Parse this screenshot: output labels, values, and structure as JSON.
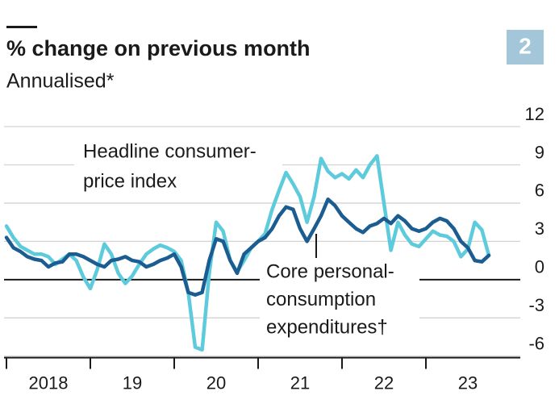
{
  "chart_data": {
    "type": "line",
    "title": "% change on previous month",
    "subtitle": "Annualised*",
    "badge": "2",
    "x": [
      2018,
      2018.083,
      2018.167,
      2018.25,
      2018.333,
      2018.417,
      2018.5,
      2018.583,
      2018.667,
      2018.75,
      2018.833,
      2018.917,
      2019,
      2019.083,
      2019.167,
      2019.25,
      2019.333,
      2019.417,
      2019.5,
      2019.583,
      2019.667,
      2019.75,
      2019.833,
      2019.917,
      2020,
      2020.083,
      2020.167,
      2020.25,
      2020.333,
      2020.417,
      2020.5,
      2020.583,
      2020.667,
      2020.75,
      2020.833,
      2020.917,
      2021,
      2021.083,
      2021.167,
      2021.25,
      2021.333,
      2021.417,
      2021.5,
      2021.583,
      2021.667,
      2021.75,
      2021.833,
      2021.917,
      2022,
      2022.083,
      2022.167,
      2022.25,
      2022.333,
      2022.417,
      2022.5,
      2022.583,
      2022.667,
      2022.75,
      2022.833,
      2022.917,
      2023,
      2023.083,
      2023.167,
      2023.25,
      2023.333,
      2023.417,
      2023.5,
      2023.583,
      2023.667,
      2023.75
    ],
    "series": [
      {
        "name": "Headline consumer-price index",
        "color": "#5ecbdc",
        "values": [
          4.2,
          3.3,
          2.6,
          2.3,
          2.0,
          2.0,
          1.8,
          1.2,
          1.6,
          2.0,
          1.5,
          0.2,
          -0.7,
          0.8,
          2.8,
          2.0,
          0.5,
          -0.3,
          0.3,
          1.2,
          2.0,
          2.4,
          2.7,
          2.5,
          2.2,
          1.5,
          -1.0,
          -5.3,
          -5.5,
          0.5,
          4.5,
          3.8,
          1.5,
          0.6,
          1.5,
          2.5,
          3.0,
          3.6,
          5.5,
          7.0,
          8.4,
          7.5,
          6.5,
          4.5,
          6.5,
          9.5,
          8.5,
          8.0,
          8.3,
          7.9,
          8.6,
          8.0,
          9.0,
          9.7,
          6.0,
          2.3,
          4.5,
          3.5,
          2.8,
          2.6,
          3.2,
          3.8,
          3.5,
          3.4,
          3.0,
          1.8,
          2.4,
          4.5,
          3.9,
          1.9
        ]
      },
      {
        "name": "Core personal-consumption expenditures†",
        "color": "#1c5d91",
        "values": [
          3.3,
          2.5,
          2.2,
          1.8,
          1.6,
          1.5,
          1.0,
          1.3,
          1.4,
          2.0,
          2.0,
          1.8,
          1.5,
          1.2,
          1.0,
          1.5,
          1.6,
          1.8,
          1.5,
          1.4,
          1.0,
          1.2,
          1.5,
          1.7,
          2.0,
          1.0,
          -1.0,
          -1.2,
          -1.0,
          1.5,
          3.2,
          3.0,
          1.5,
          0.5,
          2.0,
          2.5,
          3.0,
          3.3,
          4.0,
          5.0,
          5.7,
          5.5,
          4.0,
          3.0,
          4.0,
          5.0,
          6.3,
          5.8,
          5.0,
          4.5,
          4.0,
          3.7,
          4.2,
          4.4,
          4.8,
          4.4,
          5.0,
          4.6,
          4.0,
          3.8,
          4.0,
          4.5,
          4.8,
          4.6,
          4.0,
          3.0,
          2.5,
          1.5,
          1.4,
          1.9
        ]
      }
    ],
    "annotations": [
      {
        "lines": [
          "Headline consumer-",
          "price index"
        ]
      },
      {
        "lines": [
          "Core personal-",
          "consumption",
          "expenditures†"
        ]
      }
    ],
    "xlim": [
      2018,
      2024
    ],
    "xticks": [
      {
        "value": 2018,
        "label": "2018"
      },
      {
        "value": 2019,
        "label": "19"
      },
      {
        "value": 2020,
        "label": "20"
      },
      {
        "value": 2021,
        "label": "21"
      },
      {
        "value": 2022,
        "label": "22"
      },
      {
        "value": 2023,
        "label": "23"
      }
    ],
    "ylim": [
      -7,
      12
    ],
    "yticks": [
      12,
      9,
      6,
      3,
      0,
      -3,
      -6
    ],
    "grid": true
  }
}
